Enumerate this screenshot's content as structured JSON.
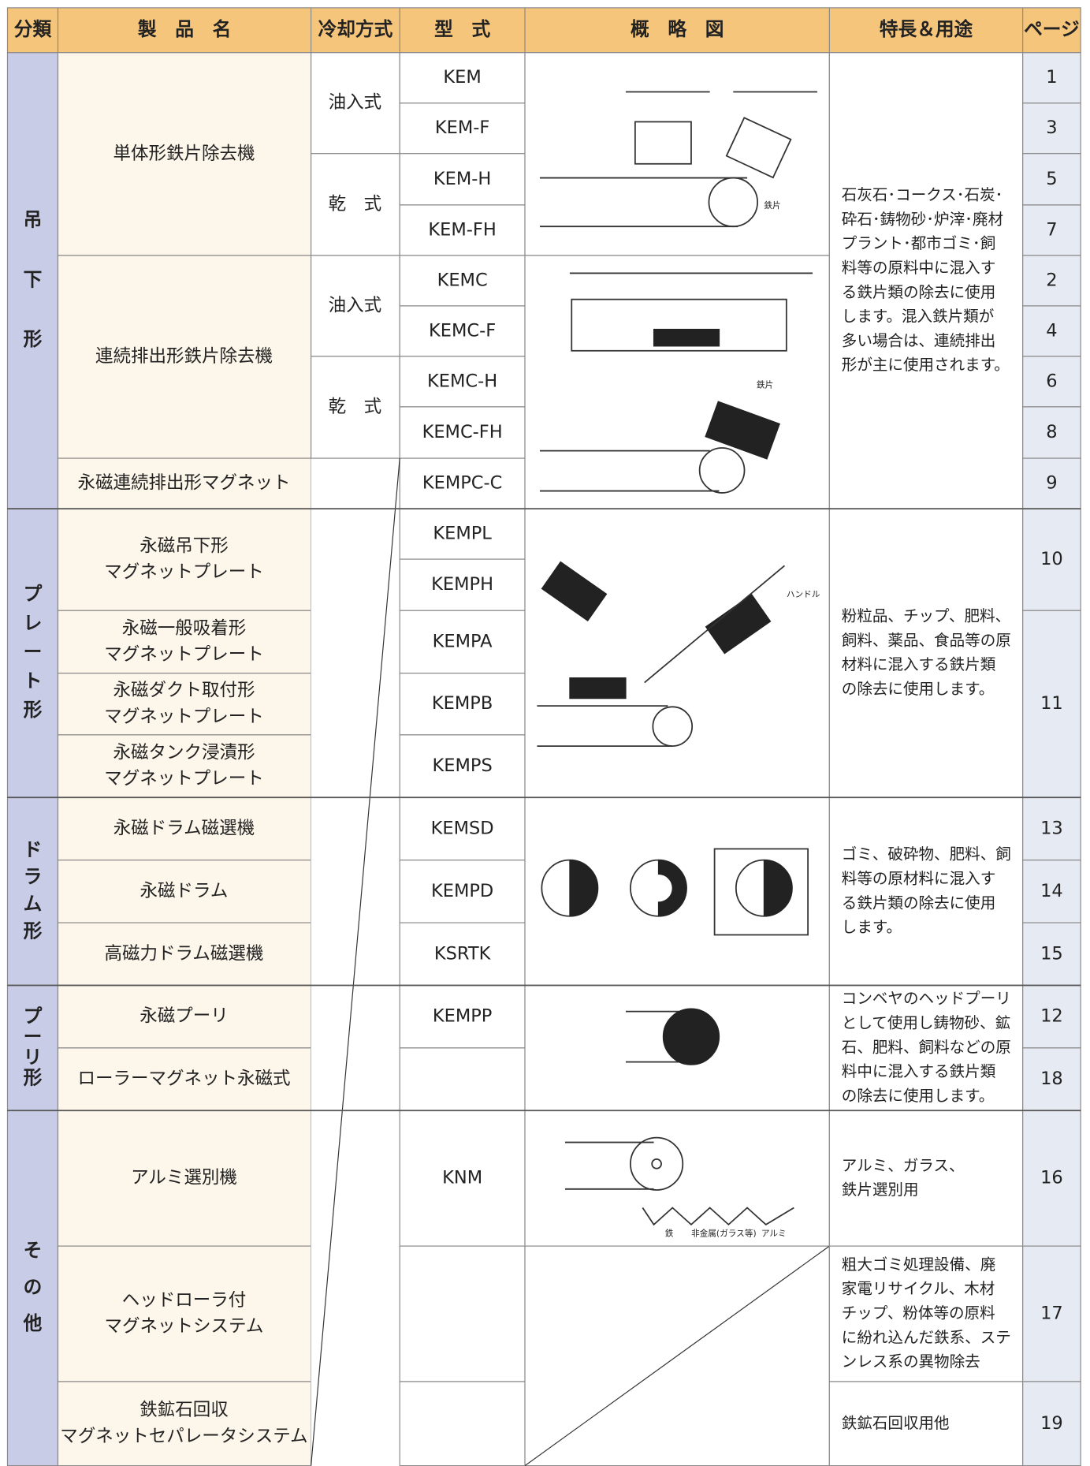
{
  "header": [
    "分類",
    "製　品　名",
    "冷却方式",
    "型　式",
    "概　略　図",
    "特長＆用途",
    "ページ"
  ],
  "categories": [
    [
      "吊",
      "下",
      "形"
    ],
    [
      "プ",
      "レ",
      "ー",
      "ト",
      "形"
    ],
    [
      "ド",
      "ラ",
      "ム",
      "形"
    ],
    [
      "プ",
      "ー",
      "リ",
      "形"
    ],
    [
      "そ",
      "の",
      "他"
    ]
  ],
  "products": [
    [
      "単体形鉄片除去機"
    ],
    [
      "連続排出形鉄片除去機"
    ],
    [
      "永磁連続排出形マグネット"
    ],
    [
      "永磁吊下形",
      "マグネットプレート"
    ],
    [
      "永磁一般吸着形",
      "マグネットプレート"
    ],
    [
      "永磁ダクト取付形",
      "マグネットプレート"
    ],
    [
      "永磁タンク浸漬形",
      "マグネットプレート"
    ],
    [
      "永磁ドラム磁選機"
    ],
    [
      "永磁ドラム"
    ],
    [
      "高磁力ドラム磁選機"
    ],
    [
      "永磁プーリ"
    ],
    [
      "ローラーマグネット永磁式"
    ],
    [
      "アルミ選別機"
    ],
    [
      "ヘッドローラ付",
      "マグネットシステム"
    ],
    [
      "鉄鉱石回収",
      "マグネットセパレータシステム"
    ]
  ],
  "cooling": [
    "油入式",
    "乾　式",
    "油入式",
    "乾　式"
  ],
  "models": [
    "KEM",
    "KEM-F",
    "KEM-H",
    "KEM-FH",
    "KEMC",
    "KEMC-F",
    "KEMC-H",
    "KEMC-FH",
    "KEMPC-C",
    "KEMPL",
    "KEMPH",
    "KEMPA",
    "KEMPB",
    "KEMPS",
    "KEMSD",
    "KEMPD",
    "KSRTK",
    "KEMPP",
    "KNM"
  ],
  "features": [
    [
      "石灰石･コークス･石炭･",
      "砕石･鋳物砂･炉滓･廃材",
      "プラント･都市ゴミ･飼",
      "料等の原料中に混入す",
      "る鉄片類の除去に使用",
      "します。混入鉄片類が",
      "多い場合は、連続排出",
      "形が主に使用されます。"
    ],
    [
      "粉粒品、チップ、肥料、",
      "飼料、薬品、食品等の原",
      "材料に混入する鉄片類",
      "の除去に使用します。"
    ],
    [
      "ゴミ、破砕物、肥料、飼",
      "料等の原材料に混入す",
      "る鉄片類の除去に使用",
      "します。"
    ],
    [
      "コンベヤのヘッドプーリ",
      "として使用し鋳物砂、鉱",
      "石、肥料、飼料などの原",
      "料中に混入する鉄片類",
      "の除去に使用します。"
    ],
    [
      "アルミ、ガラス、",
      "鉄片選別用"
    ],
    [
      "粗大ゴミ処理設備、廃",
      "家電リサイクル、木材",
      "チップ、粉体等の原料",
      "に紛れ込んだ鉄系、ステ",
      "ンレス系の異物除去"
    ],
    [
      "鉄鉱石回収用他"
    ]
  ],
  "pages": [
    "1",
    "3",
    "5",
    "7",
    "2",
    "4",
    "6",
    "8",
    "9",
    "10",
    "11",
    "13",
    "14",
    "15",
    "12",
    "18",
    "16",
    "17",
    "19"
  ],
  "sketch_labels": [
    "鉄片",
    "鉄片",
    "ハンドル",
    "鉄",
    "非金属(ガラス等)",
    "アルミ"
  ]
}
